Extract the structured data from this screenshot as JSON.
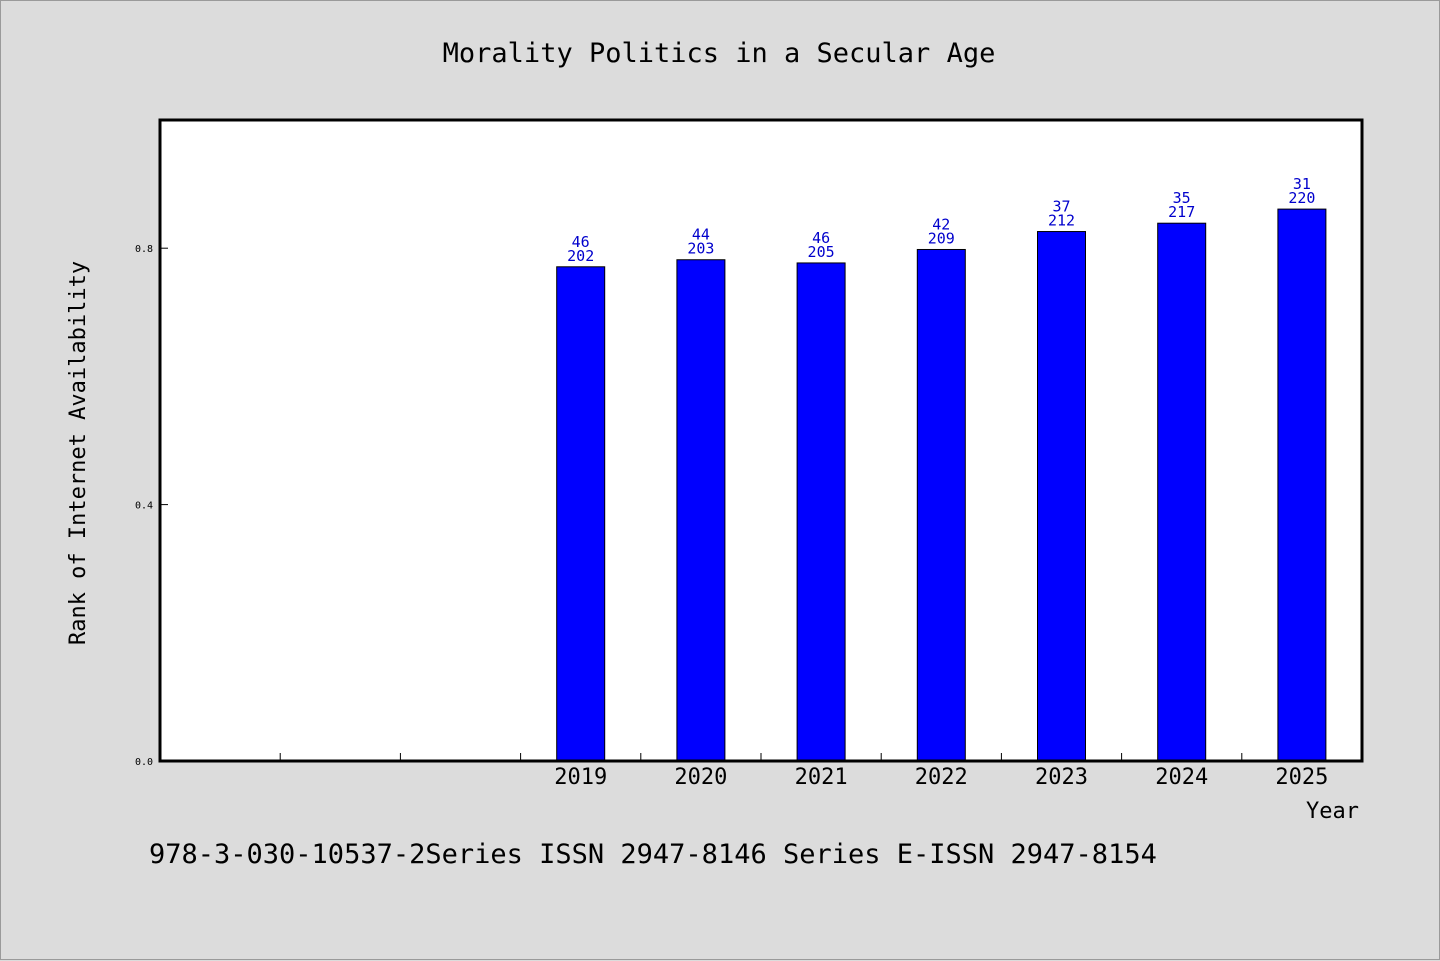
{
  "chart_data": {
    "type": "bar",
    "title": "Morality Politics in a Secular Age",
    "xlabel": "Year",
    "ylabel": "Rank of Internet Availability",
    "ylim": [
      0,
      1.0
    ],
    "yticks": [
      "0.0",
      "0.4",
      "0.8"
    ],
    "ytick_values": [
      0.0,
      0.4,
      0.8
    ],
    "x_slots": 10,
    "categories": [
      "2019",
      "2020",
      "2021",
      "2022",
      "2023",
      "2024",
      "2025"
    ],
    "category_slots": [
      3,
      4,
      5,
      6,
      7,
      8,
      9
    ],
    "values": [
      0.771,
      0.782,
      0.777,
      0.798,
      0.826,
      0.839,
      0.861
    ],
    "label_top": [
      "46",
      "44",
      "46",
      "42",
      "37",
      "35",
      "31"
    ],
    "label_bottom": [
      "202",
      "203",
      "205",
      "209",
      "212",
      "217",
      "220"
    ],
    "bar_color": "#0000ff",
    "label_color": "#0000cc",
    "grid": false,
    "legend": "none"
  },
  "footer": {
    "text": "978-3-030-10537-2Series ISSN 2947-8146 Series E-ISSN 2947-8154"
  },
  "colors": {
    "background": "#dcdcdc",
    "plot_background": "#ffffff",
    "bars": "#0000ff"
  }
}
